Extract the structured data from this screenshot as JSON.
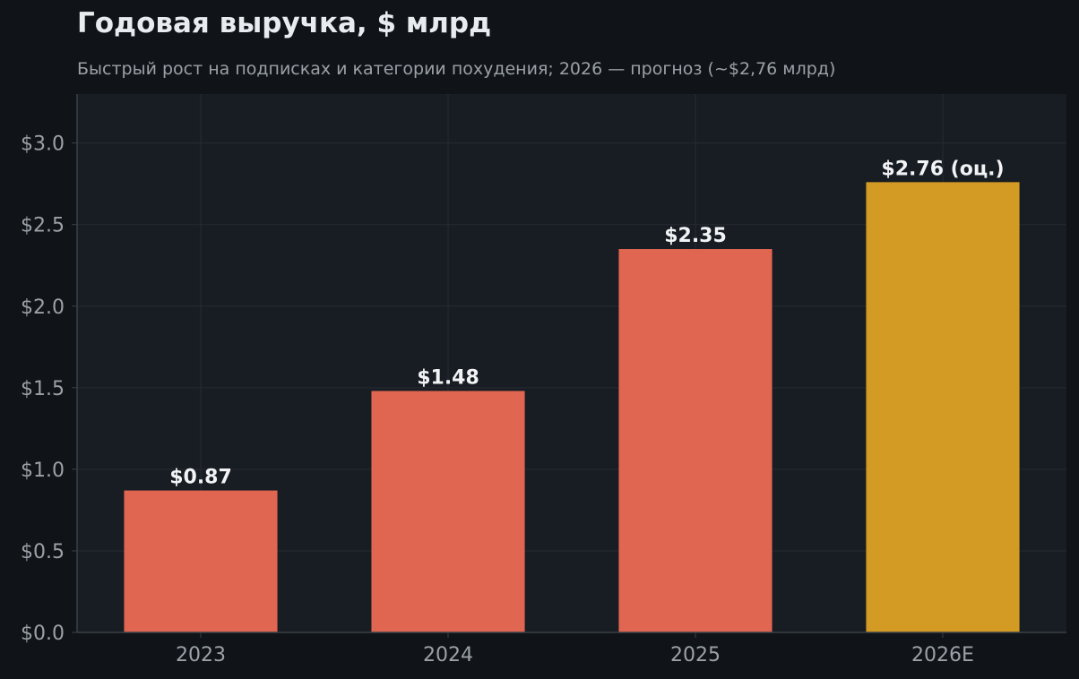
{
  "chart_data": {
    "type": "bar",
    "title": "Годовая выручка, $ млрд",
    "subtitle": "Быстрый рост на подписках и категории похудения; 2026 — прогноз (~$2,76 млрд)",
    "xlabel": "",
    "ylabel": "",
    "categories": [
      "2023",
      "2024",
      "2025",
      "2026E"
    ],
    "values": [
      0.87,
      1.48,
      2.35,
      2.76
    ],
    "data_labels": [
      "$0.87",
      "$1.48",
      "$2.35",
      "$2.76 (оц.)"
    ],
    "forecast": [
      false,
      false,
      false,
      true
    ],
    "ylim": [
      0,
      3.3
    ],
    "yticks": [
      0,
      0.5,
      1.0,
      1.5,
      2.0,
      2.5,
      3.0
    ],
    "ytick_labels": [
      "$0.0",
      "$0.5",
      "$1.0",
      "$1.5",
      "$2.0",
      "$2.5",
      "$3.0"
    ],
    "grid": true,
    "legend": "none",
    "colors": {
      "actual": "#e06651",
      "forecast": "#d39a24",
      "page_background": "#101418",
      "plot_background": "#181c23",
      "grid": "#262b33",
      "axis": "#3a4048",
      "title": "#e9ecef",
      "subtitle": "#9ba1a8",
      "tick_label": "#9ba1a8",
      "value_label": "#f1f3f5"
    }
  }
}
